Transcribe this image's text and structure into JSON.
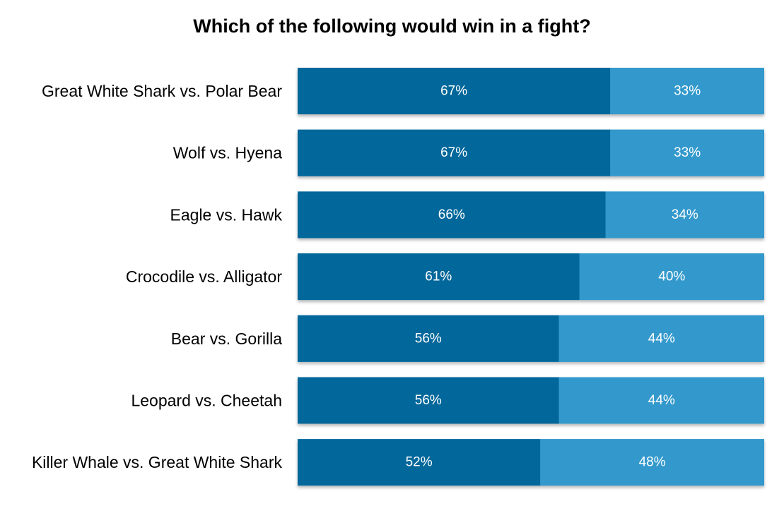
{
  "chart_data": {
    "type": "bar",
    "orientation": "horizontal",
    "stacked": true,
    "title": "Which of the following would win in a fight?",
    "xlabel": "",
    "ylabel": "",
    "grid": false,
    "categories": [
      "Great White Shark vs. Polar Bear",
      "Wolf vs. Hyena",
      "Eagle vs. Hawk",
      "Crocodile vs. Alligator",
      "Bear vs. Gorilla",
      "Leopard vs. Cheetah",
      "Killer Whale vs. Great White Shark"
    ],
    "series": [
      {
        "values": [
          67,
          67,
          66,
          61,
          56,
          56,
          52
        ],
        "labels": [
          "67%",
          "67%",
          "66%",
          "61%",
          "56%",
          "56%",
          "52%"
        ],
        "color": "#02679a"
      },
      {
        "values": [
          33,
          33,
          34,
          40,
          44,
          44,
          48
        ],
        "labels": [
          "33%",
          "33%",
          "34%",
          "40%",
          "44%",
          "44%",
          "48%"
        ],
        "color": "#3399cc"
      }
    ],
    "xlim": [
      0,
      100
    ]
  }
}
